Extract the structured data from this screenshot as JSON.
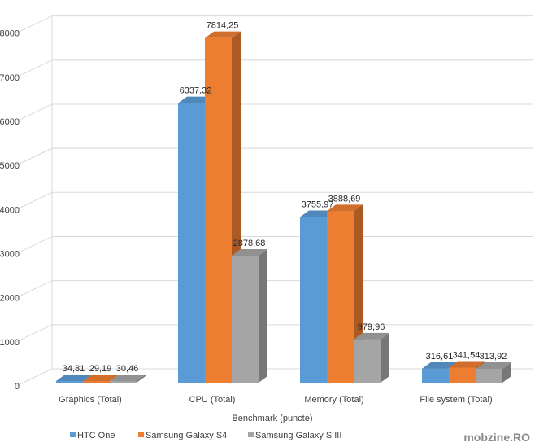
{
  "chart_data": {
    "type": "bar",
    "three_d": true,
    "categories": [
      "Graphics (Total)",
      "CPU (Total)",
      "Memory (Total)",
      "File system (Total)"
    ],
    "series": [
      {
        "name": "HTC One",
        "color": "#5b9bd5",
        "values": [
          34.81,
          6337.32,
          3755.97,
          316.61
        ],
        "labels": [
          "34,81",
          "6337,32",
          "3755,97",
          "316,61"
        ]
      },
      {
        "name": "Samsung Galaxy S4",
        "color": "#ed7d31",
        "values": [
          29.19,
          7814.25,
          3888.69,
          341.54
        ],
        "labels": [
          "29,19",
          "7814,25",
          "3888,69",
          "341,54"
        ]
      },
      {
        "name": "Samsung Galaxy S III",
        "color": "#a5a5a5",
        "values": [
          30.46,
          2878.68,
          979.96,
          313.92
        ],
        "labels": [
          "30,46",
          "2878,68",
          "979,96",
          "313,92"
        ]
      }
    ],
    "xlabel": "Benchmark (puncte)",
    "ylabel": "",
    "ylim": [
      0,
      8000
    ],
    "yticks": [
      0,
      1000,
      2000,
      3000,
      4000,
      5000,
      6000,
      7000,
      8000
    ],
    "grid": true,
    "legend_position": "bottom-left"
  },
  "watermark": "mobzine.RO"
}
